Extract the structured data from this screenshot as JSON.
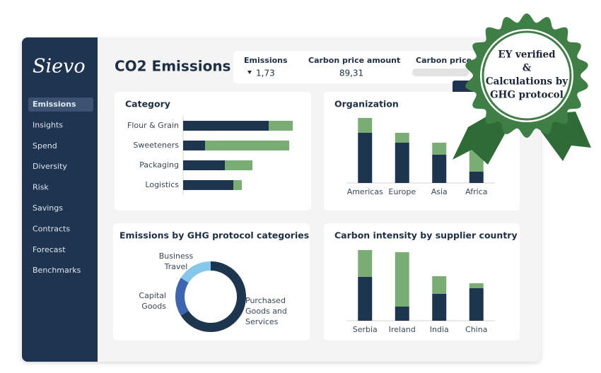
{
  "sidebar": {
    "logo": "Sievo",
    "active": 0,
    "menu": [
      "Emissions",
      "Insights",
      "Spend",
      "Diversity",
      "Risk",
      "Savings",
      "Contracts",
      "Forecast",
      "Benchmarks"
    ]
  },
  "header": {
    "title": "CO2 Emissions"
  },
  "kpis": [
    {
      "label": "Emissions",
      "value": "1,73",
      "trend": "down"
    },
    {
      "label": "Carbon price amount",
      "value": "89,31"
    },
    {
      "label": "Carbon price"
    }
  ],
  "panels": [
    {
      "title": "Category",
      "chart": {
        "type": "bar",
        "orientation": "horizontal",
        "categories": [
          "Flour & Grain",
          "Sweeteners",
          "Packaging",
          "Logistics"
        ],
        "series": [
          {
            "color": "#1e3550",
            "values": [
              121,
              31,
              59,
              71
            ]
          },
          {
            "color": "#79ad74",
            "values": [
              34,
              119,
              39,
              12
            ]
          }
        ],
        "xlim": [
          0,
          160
        ]
      }
    },
    {
      "title": "Organization",
      "chart": {
        "type": "bar",
        "orientation": "vertical",
        "categories": [
          "Americas",
          "Europe",
          "Asia",
          "Africa"
        ],
        "series": [
          {
            "color": "#1e3550",
            "values": [
              71,
              57,
              40,
              16
            ]
          },
          {
            "color": "#79ad74",
            "values": [
              21,
              14,
              17,
              36
            ]
          }
        ],
        "ylim": [
          0,
          100
        ]
      }
    },
    {
      "title": "Emissions by GHG protocol categories",
      "chart": {
        "type": "pie",
        "labels": [
          [
            "Purchased",
            "Goods and",
            "Services"
          ],
          [
            "Capital",
            "Goods"
          ],
          [
            "Business",
            "Travel"
          ]
        ],
        "values": [
          66,
          18,
          16
        ],
        "colors": [
          "#1e3550",
          "#3d66b2",
          "#86c8ec"
        ]
      }
    },
    {
      "title": "Carbon intensity by supplier country",
      "chart": {
        "type": "bar",
        "orientation": "vertical",
        "categories": [
          "Serbia",
          "Ireland",
          "India",
          "China"
        ],
        "series": [
          {
            "color": "#1e3550",
            "values": [
              62,
              20,
              38,
              46
            ]
          },
          {
            "color": "#79ad74",
            "values": [
              38,
              77,
              25,
              7
            ]
          }
        ],
        "ylim": [
          0,
          105
        ]
      }
    }
  ],
  "badge": {
    "lines": [
      "EY verified",
      "&",
      "Calculations by",
      "GHG protocol"
    ]
  }
}
